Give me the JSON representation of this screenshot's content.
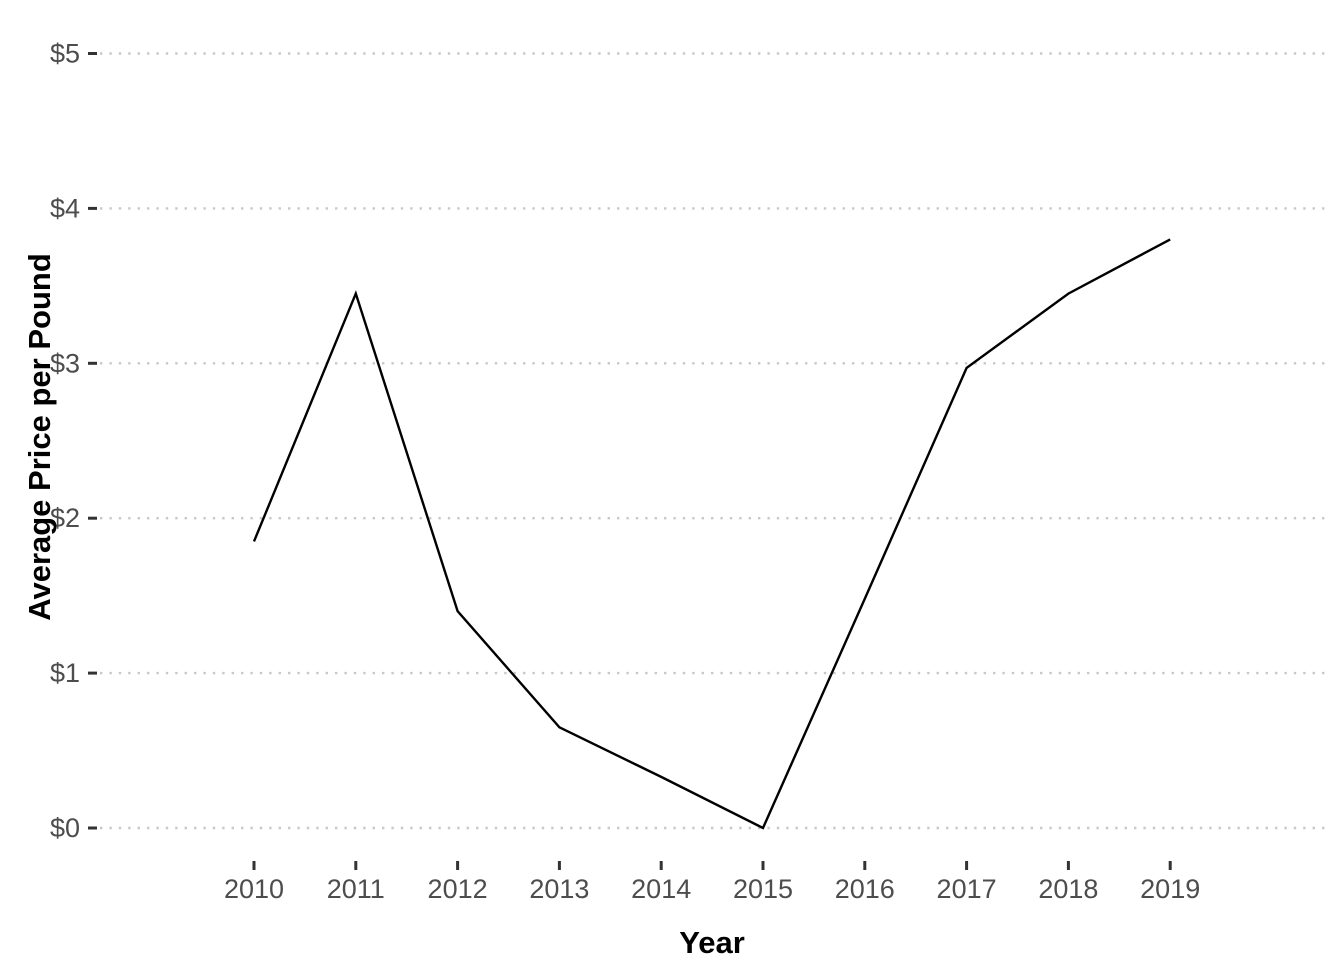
{
  "chart_data": {
    "type": "line",
    "title": "",
    "xlabel": "Year",
    "ylabel": "Average Price per Pound",
    "x": [
      2010,
      2011,
      2012,
      2013,
      2014,
      2015,
      2016,
      2017,
      2018,
      2019
    ],
    "series": [
      {
        "name": "average-price-per-pound",
        "values": [
          1.85,
          3.45,
          1.4,
          0.65,
          0.33,
          0.0,
          1.48,
          2.97,
          3.45,
          3.8
        ]
      }
    ],
    "x_tick_labels": [
      "2010",
      "2011",
      "2012",
      "2013",
      "2014",
      "2015",
      "2016",
      "2017",
      "2018",
      "2019"
    ],
    "y_tick_labels": [
      "$0",
      "$1",
      "$2",
      "$3",
      "$4",
      "$5"
    ],
    "y_tick_values": [
      0,
      1,
      2,
      3,
      4,
      5
    ],
    "ylim": [
      0,
      5
    ],
    "grid": "horizontal-dotted-major-only",
    "legend": "none",
    "colors": {
      "line": "#000000",
      "grid": "#c8c8c8",
      "tick_label": "#4d4d4d",
      "tick_mark": "#333333",
      "axis_title": "#000000",
      "background": "#ffffff"
    }
  }
}
